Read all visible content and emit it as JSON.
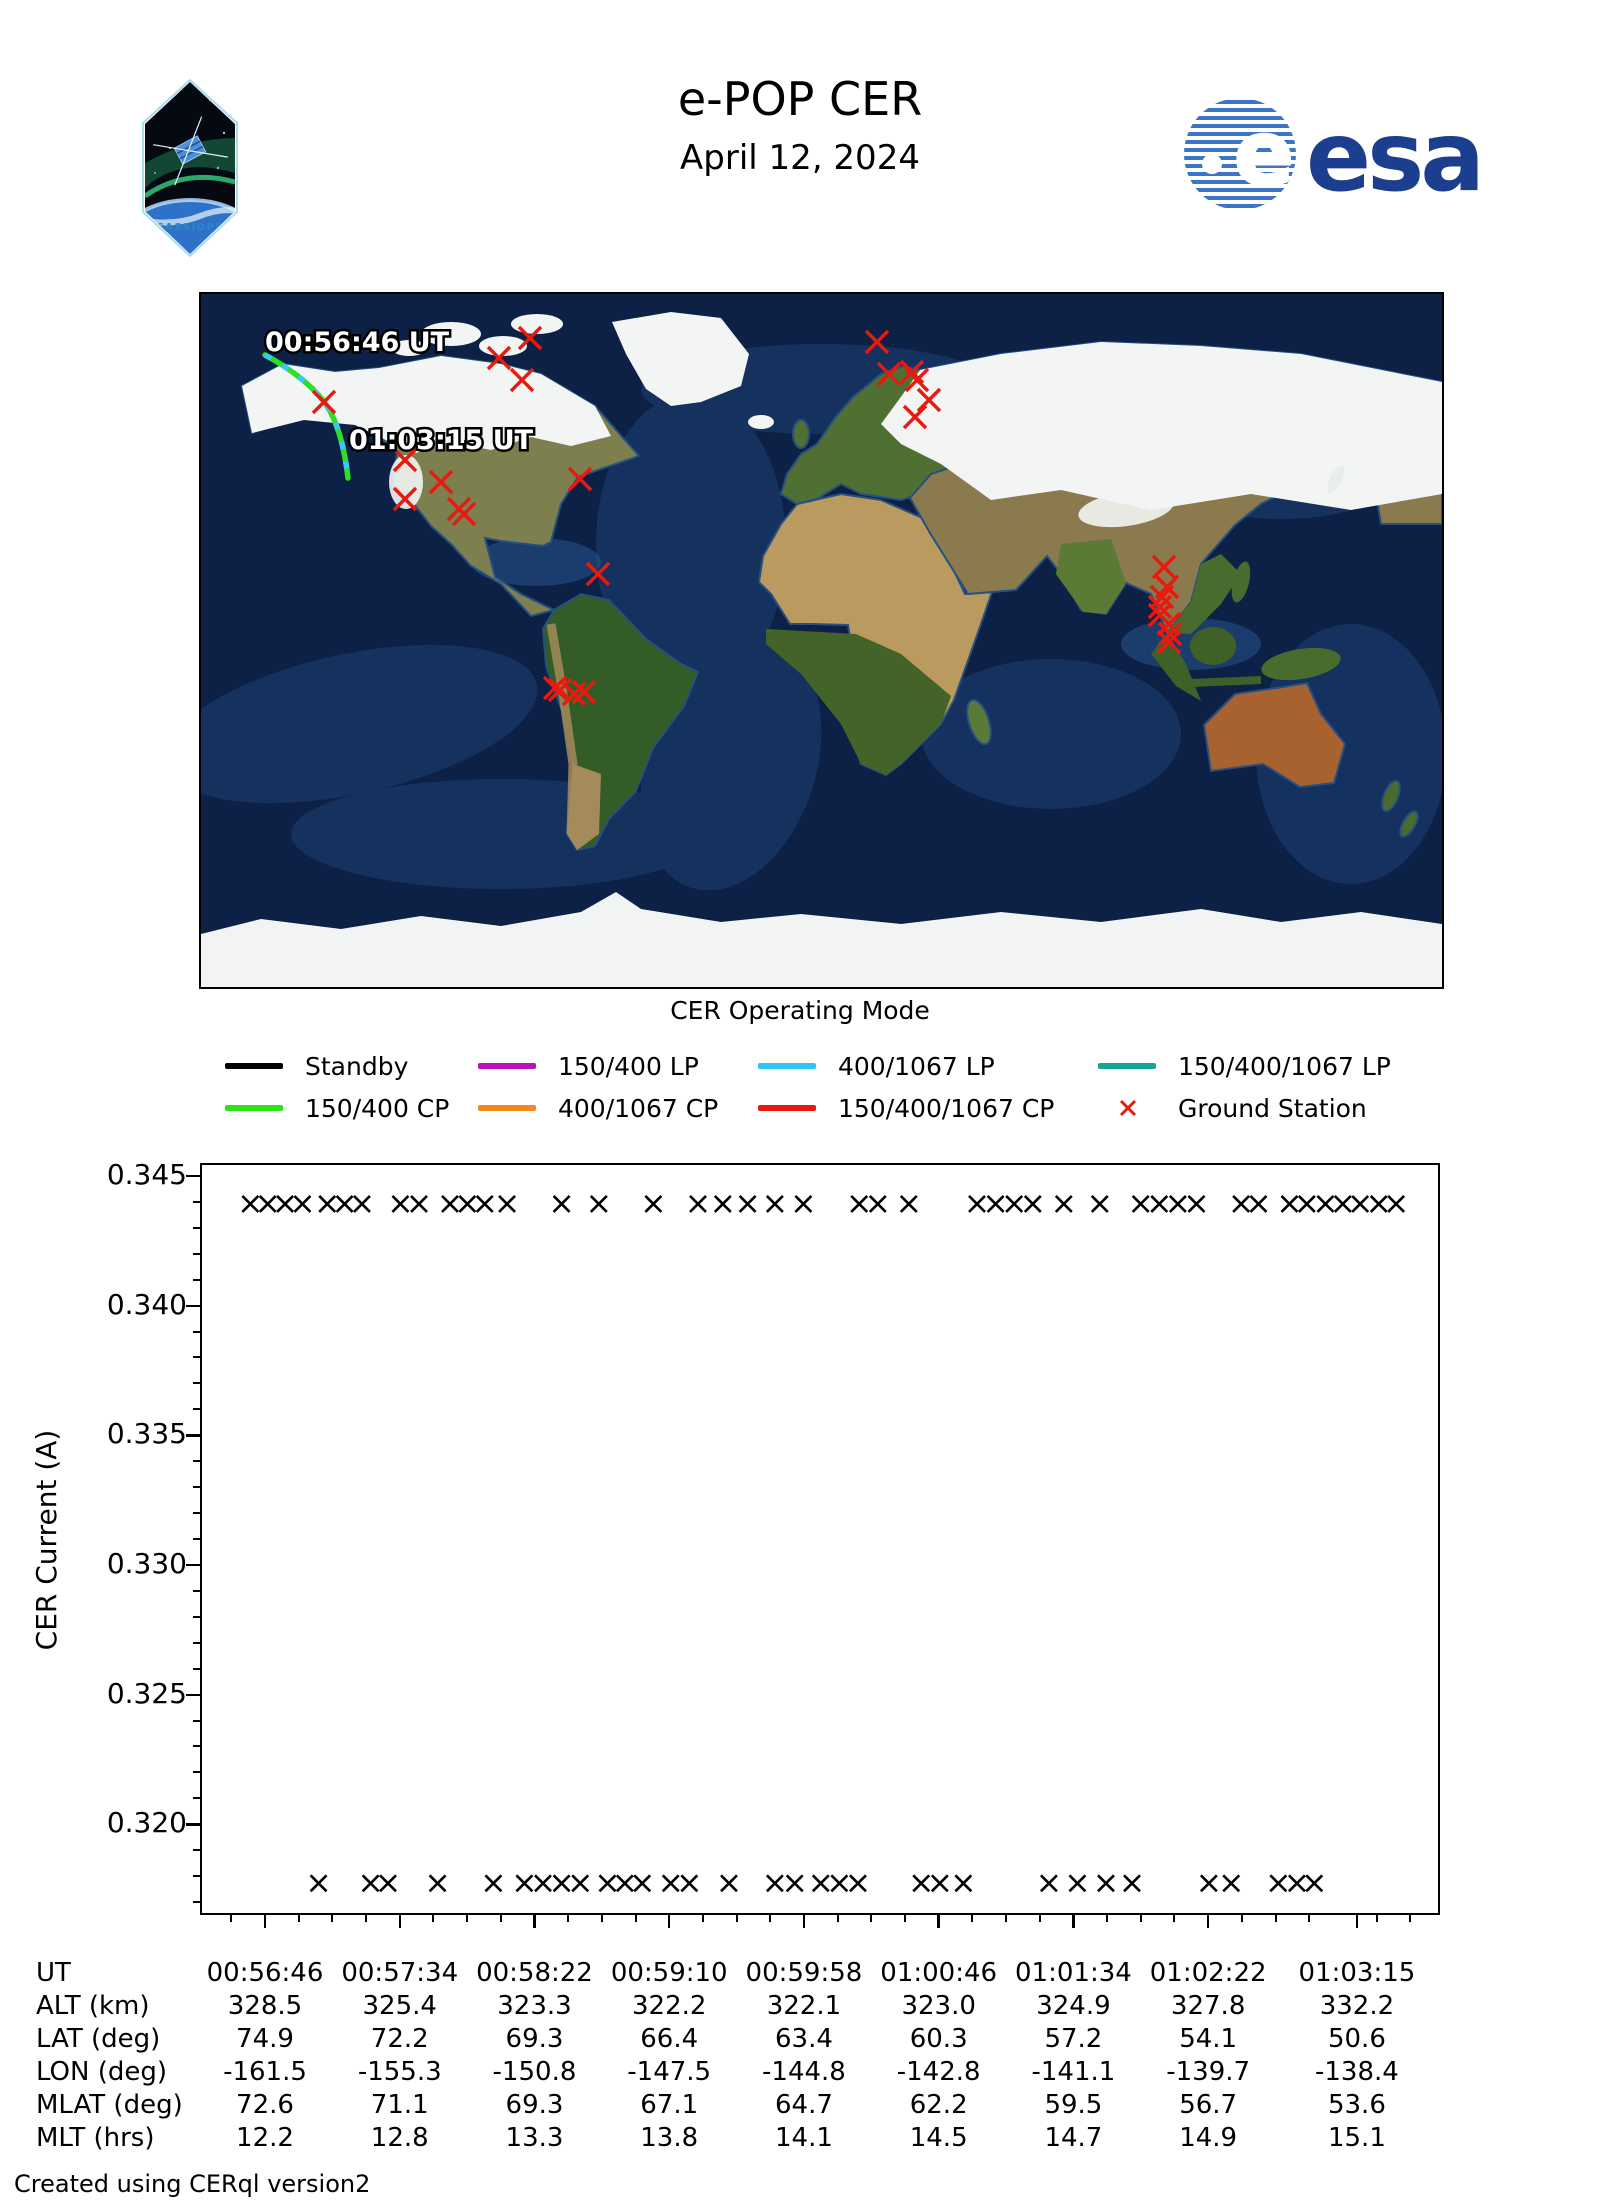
{
  "header": {
    "title": "e-POP CER",
    "date": "April 12, 2024",
    "patch_label": "CASSIOPE",
    "esa_wordmark": "esa",
    "esa_blue": "#1b3f8e"
  },
  "map": {
    "track_start_label": "00:56:46 UT",
    "track_end_label": "01:03:15 UT",
    "track_colors": {
      "base": "#2ae02a",
      "dash": "#3ec7f0"
    },
    "ground_station_color": "#e8190e",
    "ground_stations": [
      [
        123,
        108
      ],
      [
        329,
        44
      ],
      [
        298,
        64
      ],
      [
        321,
        86
      ],
      [
        204,
        166
      ],
      [
        240,
        188
      ],
      [
        204,
        205
      ],
      [
        258,
        215
      ],
      [
        263,
        220
      ],
      [
        379,
        185
      ],
      [
        397,
        280
      ],
      [
        354,
        394
      ],
      [
        359,
        396
      ],
      [
        373,
        400
      ],
      [
        383,
        398
      ],
      [
        676,
        48
      ],
      [
        688,
        80
      ],
      [
        711,
        78
      ],
      [
        716,
        86
      ],
      [
        728,
        106
      ],
      [
        714,
        123
      ],
      [
        963,
        273
      ],
      [
        966,
        293
      ],
      [
        961,
        303
      ],
      [
        959,
        313
      ],
      [
        959,
        321
      ],
      [
        968,
        330
      ],
      [
        969,
        340
      ],
      [
        968,
        348
      ]
    ]
  },
  "legend": {
    "title": "CER Operating Mode",
    "items": [
      {
        "label": "Standby",
        "color": "#000000",
        "type": "line"
      },
      {
        "label": "150/400 LP",
        "color": "#b612b6",
        "type": "line"
      },
      {
        "label": "400/1067 LP",
        "color": "#2bc7f2",
        "type": "line"
      },
      {
        "label": "150/400/1067 LP",
        "color": "#17a398",
        "type": "line"
      },
      {
        "label": "150/400 CP",
        "color": "#2ce512",
        "type": "line"
      },
      {
        "label": "400/1067 CP",
        "color": "#f5871f",
        "type": "line"
      },
      {
        "label": "150/400/1067 CP",
        "color": "#e8190e",
        "type": "line"
      },
      {
        "label": "Ground Station",
        "color": "#e8190e",
        "type": "x"
      }
    ]
  },
  "chart_data": {
    "type": "scatter",
    "title": "",
    "xlabel": "",
    "ylabel": "CER Current (A)",
    "marker": "x",
    "marker_color": "#000000",
    "ylim": [
      0.3165,
      0.3455
    ],
    "yticks": [
      {
        "label": "0.345",
        "value": 0.345
      },
      {
        "label": "0.340",
        "value": 0.34
      },
      {
        "label": "0.335",
        "value": 0.335
      },
      {
        "label": "0.330",
        "value": 0.33
      },
      {
        "label": "0.325",
        "value": 0.325
      },
      {
        "label": "0.320",
        "value": 0.32
      }
    ],
    "x_tick_seconds": [
      0,
      48,
      96,
      144,
      192,
      240,
      288,
      336,
      389
    ],
    "series": [
      {
        "name": "upper-cluster",
        "value": 0.344,
        "x_fractions": [
          0.039,
          0.053,
          0.067,
          0.081,
          0.101,
          0.115,
          0.129,
          0.16,
          0.175,
          0.2,
          0.214,
          0.228,
          0.246,
          0.29,
          0.32,
          0.364,
          0.4,
          0.42,
          0.44,
          0.462,
          0.485,
          0.53,
          0.545,
          0.57,
          0.625,
          0.64,
          0.655,
          0.67,
          0.695,
          0.724,
          0.757,
          0.772,
          0.787,
          0.802,
          0.838,
          0.852,
          0.877,
          0.891,
          0.906,
          0.92,
          0.934,
          0.949,
          0.963
        ]
      },
      {
        "name": "lower-cluster",
        "value": 0.3178,
        "x_fractions": [
          0.094,
          0.136,
          0.15,
          0.19,
          0.235,
          0.26,
          0.275,
          0.29,
          0.305,
          0.327,
          0.341,
          0.355,
          0.378,
          0.393,
          0.425,
          0.462,
          0.478,
          0.499,
          0.514,
          0.529,
          0.58,
          0.595,
          0.614,
          0.683,
          0.706,
          0.729,
          0.75,
          0.812,
          0.83,
          0.868,
          0.883,
          0.897
        ]
      }
    ]
  },
  "table": {
    "rows": [
      {
        "label": "UT",
        "values": [
          "00:56:46",
          "00:57:34",
          "00:58:22",
          "00:59:10",
          "00:59:58",
          "01:00:46",
          "01:01:34",
          "01:02:22",
          "01:03:15"
        ]
      },
      {
        "label": "ALT (km)",
        "values": [
          "328.5",
          "325.4",
          "323.3",
          "322.2",
          "322.1",
          "323.0",
          "324.9",
          "327.8",
          "332.2"
        ]
      },
      {
        "label": "LAT (deg)",
        "values": [
          "74.9",
          "72.2",
          "69.3",
          "66.4",
          "63.4",
          "60.3",
          "57.2",
          "54.1",
          "50.6"
        ]
      },
      {
        "label": "LON (deg)",
        "values": [
          "-161.5",
          "-155.3",
          "-150.8",
          "-147.5",
          "-144.8",
          "-142.8",
          "-141.1",
          "-139.7",
          "-138.4"
        ]
      },
      {
        "label": "MLAT (deg)",
        "values": [
          "72.6",
          "71.1",
          "69.3",
          "67.1",
          "64.7",
          "62.2",
          "59.5",
          "56.7",
          "53.6"
        ]
      },
      {
        "label": "MLT (hrs)",
        "values": [
          "12.2",
          "12.8",
          "13.3",
          "13.8",
          "14.1",
          "14.5",
          "14.7",
          "14.9",
          "15.1"
        ]
      }
    ]
  },
  "footer": "Created using CERql version2"
}
